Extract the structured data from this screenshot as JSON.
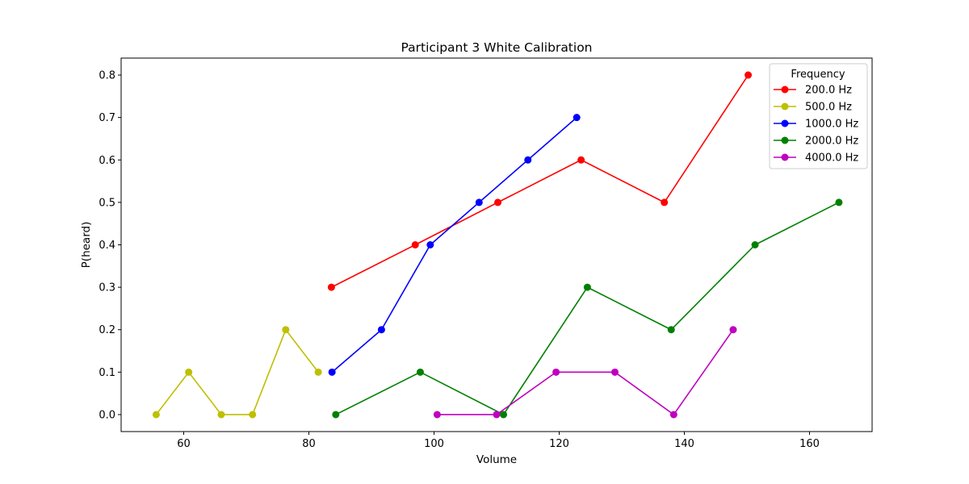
{
  "chart_data": {
    "type": "line",
    "title": "Participant 3 White Calibration",
    "xlabel": "Volume",
    "ylabel": "P(heard)",
    "xlim": [
      50,
      170
    ],
    "ylim": [
      -0.04,
      0.84
    ],
    "xticks": [
      60,
      80,
      100,
      120,
      140,
      160
    ],
    "yticks": [
      0.0,
      0.1,
      0.2,
      0.3,
      0.4,
      0.5,
      0.6,
      0.7,
      0.8
    ],
    "xtick_labels": [
      "60",
      "80",
      "100",
      "120",
      "140",
      "160"
    ],
    "ytick_labels": [
      "0.0",
      "0.1",
      "0.2",
      "0.3",
      "0.4",
      "0.5",
      "0.6",
      "0.7",
      "0.8"
    ],
    "grid": false,
    "legend": {
      "title": "Frequency",
      "position": "top-right"
    },
    "series": [
      {
        "name": "200.0 Hz",
        "color": "#ff0000",
        "x": [
          83.6,
          97.0,
          110.2,
          123.5,
          136.8,
          150.2
        ],
        "y": [
          0.3,
          0.4,
          0.5,
          0.6,
          0.5,
          0.8
        ]
      },
      {
        "name": "500.0 Hz",
        "color": "#bfbf00",
        "x": [
          55.6,
          60.8,
          66.0,
          71.0,
          76.3,
          81.5
        ],
        "y": [
          0.0,
          0.1,
          0.0,
          0.0,
          0.2,
          0.1
        ]
      },
      {
        "name": "1000.0 Hz",
        "color": "#0000ff",
        "x": [
          83.7,
          91.6,
          99.4,
          107.2,
          115.0,
          122.8
        ],
        "y": [
          0.1,
          0.2,
          0.4,
          0.5,
          0.6,
          0.7
        ]
      },
      {
        "name": "2000.0 Hz",
        "color": "#008000",
        "x": [
          84.3,
          97.8,
          111.1,
          124.5,
          137.9,
          151.3,
          164.7
        ],
        "y": [
          0.0,
          0.1,
          0.0,
          0.3,
          0.2,
          0.4,
          0.5
        ]
      },
      {
        "name": "4000.0 Hz",
        "color": "#bf00bf",
        "x": [
          100.5,
          110.0,
          119.5,
          128.9,
          138.3,
          147.8
        ],
        "y": [
          0.0,
          0.0,
          0.1,
          0.1,
          0.0,
          0.2
        ]
      }
    ]
  }
}
